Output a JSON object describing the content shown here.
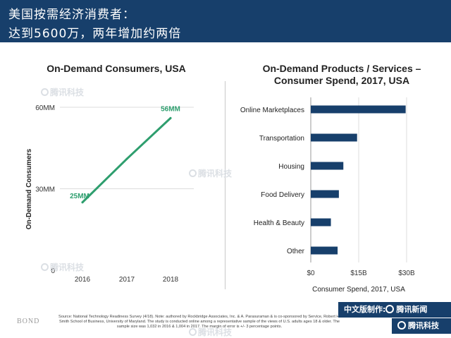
{
  "header": {
    "line1": "美国按需经济消费者：",
    "line2": "达到5600万，两年增加约两倍"
  },
  "watermark": "腾讯科技",
  "footer": {
    "source": "Source: National Technology Readiness Survey (4/18). Note: authored by Rockbridge Associates, Inc. & A. Parasuraman & is co-sponsored by Service, Robert H. Smith School of Business, University of Maryland. The study is conducted online among a representative sample of the views of U.S. adults ages 18 & older. The sample size was 1,032 in 2016 & 1,004 in 2017. The margin of error is +/- 3 percentage points.",
    "brand": "BOND",
    "badge_label": "中文版制作:",
    "badge_name1": "腾讯新闻",
    "badge_name2": "腾讯科技"
  },
  "colors": {
    "header_bg": "#173f6b",
    "line": "#2e9e6e",
    "bar": "#173f6b"
  },
  "chart_data": [
    {
      "type": "line",
      "title": "On-Demand Consumers, USA",
      "ylabel": "On-Demand Consumers",
      "x": [
        "2016",
        "2017",
        "2018"
      ],
      "values": [
        25,
        41,
        56
      ],
      "data_labels": [
        {
          "x": "2016",
          "label": "25MM"
        },
        {
          "x": "2018",
          "label": "56MM"
        }
      ],
      "yticks": [
        {
          "value": 0,
          "label": "0"
        },
        {
          "value": 30,
          "label": "30MM"
        },
        {
          "value": 60,
          "label": "60MM"
        }
      ],
      "ylim": [
        0,
        60
      ],
      "grid": true
    },
    {
      "type": "bar",
      "orientation": "horizontal",
      "title": "On-Demand Products / Services – Consumer Spend, 2017, USA",
      "xlabel": "Consumer Spend, 2017, USA",
      "categories": [
        "Online Marketplaces",
        "Transportation",
        "Housing",
        "Food Delivery",
        "Health & Beauty",
        "Other"
      ],
      "values": [
        29.7,
        14.5,
        10.2,
        8.8,
        6.3,
        8.4
      ],
      "xticks": [
        {
          "value": 0,
          "label": "$0"
        },
        {
          "value": 15,
          "label": "$15B"
        },
        {
          "value": 30,
          "label": "$30B"
        }
      ],
      "xlim": [
        0,
        30
      ],
      "grid": true
    }
  ]
}
